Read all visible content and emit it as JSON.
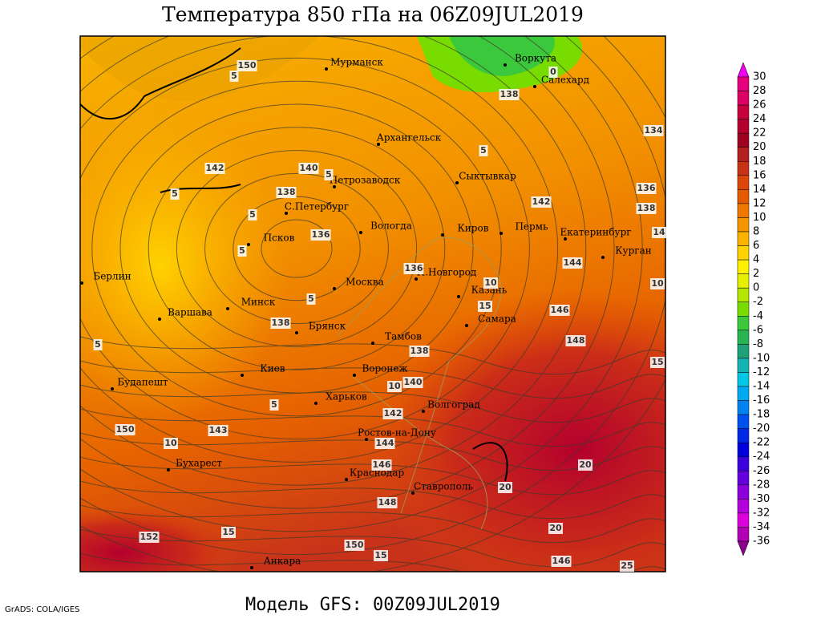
{
  "header": {
    "title": "Температура 850 гПа на 06Z09JUL2019"
  },
  "footer": {
    "model": "Модель GFS: 00Z09JUL2019",
    "credit": "GrADS: COLA/IGES"
  },
  "colorbar": {
    "labels": [
      "30",
      "28",
      "26",
      "24",
      "22",
      "20",
      "18",
      "16",
      "14",
      "12",
      "10",
      "8",
      "6",
      "4",
      "2",
      "0",
      "-2",
      "-4",
      "-6",
      "-8",
      "-10",
      "-12",
      "-14",
      "-16",
      "-18",
      "-20",
      "-22",
      "-24",
      "-26",
      "-28",
      "-30",
      "-32",
      "-34",
      "-36"
    ],
    "colors": [
      "#ee00ee",
      "#e6007e",
      "#dc0064",
      "#c8003c",
      "#b4002d",
      "#a00020",
      "#b41e1e",
      "#c83214",
      "#dc460a",
      "#e65a00",
      "#f07800",
      "#f59600",
      "#fab400",
      "#ffd200",
      "#fff000",
      "#e6f000",
      "#b4e600",
      "#78dc00",
      "#3cc83c",
      "#28b450",
      "#1ea078",
      "#14b4b4",
      "#00c8e6",
      "#00aaf0",
      "#0082f0",
      "#0050f0",
      "#0028e6",
      "#0000dc",
      "#3c00dc",
      "#6400dc",
      "#8c00dc",
      "#b400dc",
      "#dc00dc",
      "#b400b4",
      "#8c008c"
    ]
  },
  "cities": [
    "Мурманск",
    "Воркута",
    "Салехард",
    "Архангельск",
    "Петрозаводск",
    "Сыктывкар",
    "С.Петербург",
    "Вологда",
    "Киров",
    "Пермь",
    "Екатеринбург",
    "Курган",
    "Псков",
    "Н.Новгород",
    "Берлин",
    "Москва",
    "Казань",
    "Минск",
    "Варшава",
    "Самара",
    "Брянск",
    "Тамбов",
    "Киев",
    "Воронеж",
    "Будапешт",
    "Харьков",
    "Волгоград",
    "Ростов-на-Дону",
    "Бухарест",
    "Краснодар",
    "Ставрополь",
    "Анкара"
  ],
  "contour_labels": [
    "150",
    "5",
    "138",
    "0",
    "134",
    "142",
    "140",
    "5",
    "138",
    "5",
    "136",
    "138",
    "142",
    "5",
    "5",
    "14",
    "136",
    "5",
    "136",
    "144",
    "10",
    "10",
    "15",
    "5",
    "138",
    "146",
    "148",
    "138",
    "15",
    "5",
    "10",
    "140",
    "5",
    "142",
    "150",
    "143",
    "10",
    "144",
    "20",
    "146",
    "20",
    "148",
    "15",
    "20",
    "152",
    "150",
    "15",
    "146",
    "25"
  ]
}
